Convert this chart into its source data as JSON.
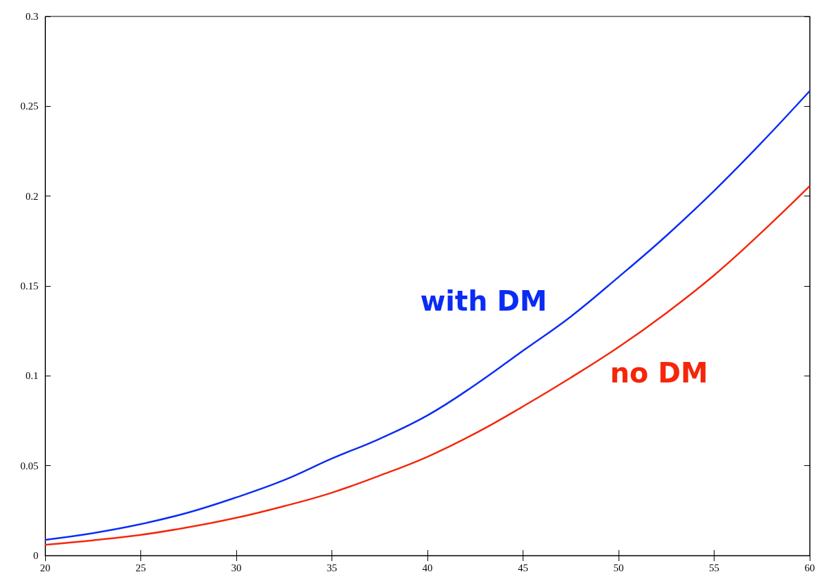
{
  "chart_data": {
    "type": "line",
    "x": [
      20,
      22.5,
      25,
      27.5,
      30,
      32.5,
      35,
      37.5,
      40,
      42.5,
      45,
      47.5,
      50,
      52.5,
      55,
      57.5,
      60
    ],
    "series": [
      {
        "color": "#0a2cf5",
        "values": [
          0.0088,
          0.0125,
          0.0175,
          0.024,
          0.0324,
          0.042,
          0.054,
          0.065,
          0.078,
          0.095,
          0.114,
          0.133,
          0.155,
          0.178,
          0.203,
          0.23,
          0.2585
        ]
      },
      {
        "color": "#f5260a",
        "values": [
          0.006,
          0.0085,
          0.0115,
          0.0158,
          0.021,
          0.0275,
          0.035,
          0.0445,
          0.055,
          0.068,
          0.083,
          0.099,
          0.116,
          0.135,
          0.156,
          0.18,
          0.2056
        ]
      }
    ],
    "annotations": [
      "with DM",
      "no DM"
    ],
    "xlim": [
      20,
      60
    ],
    "xticks": [
      20,
      25,
      30,
      35,
      40,
      45,
      50,
      55,
      60
    ],
    "ylim": [
      0,
      0.3
    ],
    "yticks": [
      0,
      0.05,
      0.1,
      0.15,
      0.2,
      0.25,
      0.3
    ],
    "grid": false,
    "marker": "none",
    "line_style": "solid"
  }
}
